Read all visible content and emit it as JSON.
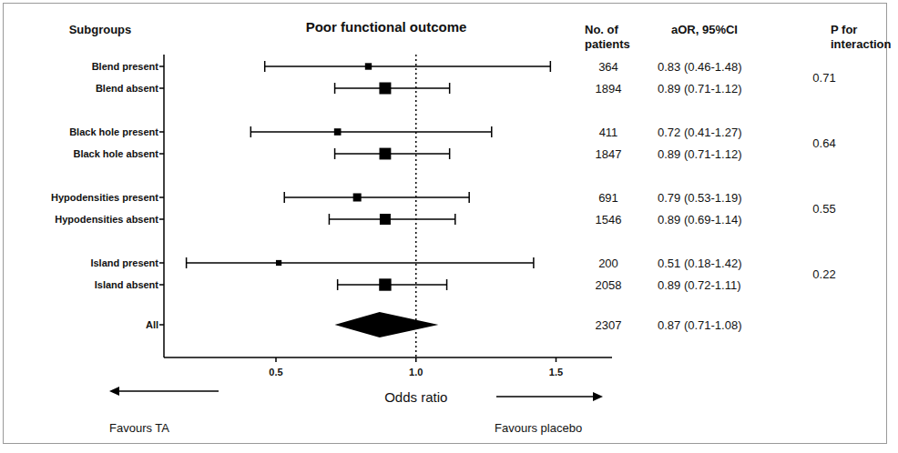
{
  "chart_data": {
    "type": "forest",
    "title": "Poor functional outcome",
    "subgroups_header": "Subgroups",
    "patients_header": [
      "No. of",
      "patients"
    ],
    "estimate_header": "aOR, 95%CI",
    "interaction_header": [
      "P for",
      "interaction"
    ],
    "x_label": "Odds ratio",
    "annotations": [
      "Favours TA",
      "Favours placebo"
    ],
    "color": "#000000",
    "xlim": [
      0.1,
      1.7
    ],
    "xticks": [
      0.5,
      {
        "value": 1,
        "label": "1.0"
      },
      1.5
    ],
    "reference_line": 1,
    "series": [
      {
        "marker": "square",
        "categories": [
          "Blend present",
          "Blend absent",
          "Black hole present",
          "Black hole absent",
          "Hypodensities present",
          "Hypodensities absent",
          "Island present",
          "Island absent"
        ],
        "values": [
          0.83,
          0.89,
          0.72,
          0.89,
          0.79,
          0.89,
          0.51,
          0.89
        ],
        "ci_lower": [
          0.46,
          0.71,
          0.41,
          0.71,
          0.53,
          0.69,
          0.18,
          0.72
        ],
        "ci_upper": [
          1.48,
          1.12,
          1.27,
          1.12,
          1.19,
          1.14,
          1.42,
          1.11
        ],
        "patients": [
          364,
          1894,
          411,
          1847,
          691,
          1546,
          200,
          2058
        ],
        "value_labels": [
          "0.83 (0.46-1.48)",
          "0.89 (0.71-1.12)",
          "0.72 (0.41-1.27)",
          "0.89 (0.71-1.12)",
          "0.79 (0.53-1.19)",
          "0.89 (0.69-1.14)",
          "0.51 (0.18-1.42)",
          "0.89 (0.72-1.11)"
        ],
        "p_interaction": [
          0.71,
          0.64,
          0.55,
          0.22
        ]
      },
      {
        "marker": "diamond",
        "categories": [
          "All"
        ],
        "values": [
          0.87
        ],
        "ci_lower": [
          0.71
        ],
        "ci_upper": [
          1.08
        ],
        "patients": [
          2307
        ],
        "value_labels": [
          "0.87 (0.71-1.08)"
        ]
      }
    ]
  }
}
